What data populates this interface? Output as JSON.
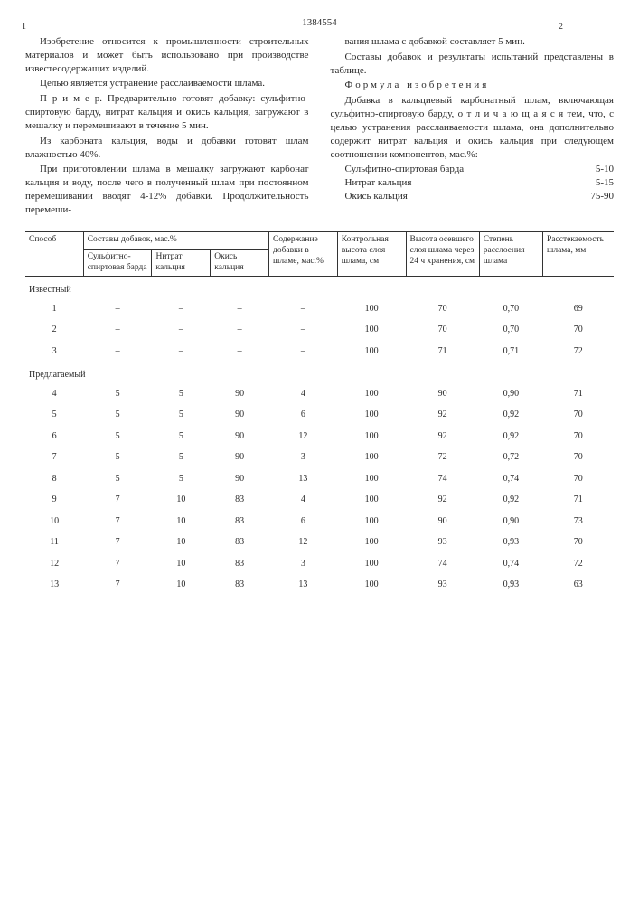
{
  "docnum": "1384554",
  "left": {
    "pagenum": "1",
    "p1": "Изобретение относится к промышленности строительных материалов и может быть использовано при производстве известесодержащих изделий.",
    "p2": "Целью является устранение расслаиваемости шлама.",
    "p3": "П р и м е р. Предварительно готовят добавку: сульфитно-спиртовую барду, нитрат кальция и окись кальция, загружают  в мешалку и перемешивают в течение 5 мин.",
    "p4": "Из карбоната кальция, воды  и добавки готовят шлам влажностью 40%.",
    "p5": "При приготовлении шлама в мешалку загружают карбонат кальция и воду, после чего в полученный шлам при постоянном перемешивании вводят 4-12% добавки. Продолжительность перемеши-"
  },
  "right": {
    "pagenum": "2",
    "p1": "вания шлама с добавкой составляет 5 мин.",
    "p2": "Составы добавок и результаты испытаний представлены в таблице.",
    "formula_head": "Формула изобретения",
    "p3": "Добавка в кальциевый карбонатный шлам, включающая сульфитно-спиртовую барду,  о т л и ч а ю щ а я с я  тем, что, с целью устранения расслаиваемости шлама, она дополнительно содержит нитрат кальция и окись кальция при следующем соотношении компонентов, мас.%:",
    "c1l": "Сульфитно-спиртовая барда",
    "c1r": "5-10",
    "c2l": "Нитрат кальция",
    "c2r": "5-15",
    "c3l": "Окись кальция",
    "c3r": "75-90"
  },
  "headers": {
    "h1": "Способ",
    "h2": "Составы добавок, мас.%",
    "h2a": "Сульфитно-спиртовая барда",
    "h2b": "Нитрат кальция",
    "h2c": "Окись кальция",
    "h3": "Содержание добавки в шламе, мас.%",
    "h4": "Контрольная высота слоя шлама, см",
    "h5": "Высота осевшего слоя шлама через 24 ч хранения, см",
    "h6": "Степень расслоения шлама",
    "h7": "Расстекаемость шлама, мм"
  },
  "sections": {
    "s1": "Известный",
    "s2": "Предлагаемый"
  },
  "rows": [
    [
      "1",
      "–",
      "–",
      "–",
      "–",
      "100",
      "70",
      "0,70",
      "69"
    ],
    [
      "2",
      "–",
      "–",
      "–",
      "–",
      "100",
      "70",
      "0,70",
      "70"
    ],
    [
      "3",
      "–",
      "–",
      "–",
      "–",
      "100",
      "71",
      "0,71",
      "72"
    ]
  ],
  "rows2": [
    [
      "4",
      "5",
      "5",
      "90",
      "4",
      "100",
      "90",
      "0,90",
      "71"
    ],
    [
      "5",
      "5",
      "5",
      "90",
      "6",
      "100",
      "92",
      "0,92",
      "70"
    ],
    [
      "6",
      "5",
      "5",
      "90",
      "12",
      "100",
      "92",
      "0,92",
      "70"
    ],
    [
      "7",
      "5",
      "5",
      "90",
      "3",
      "100",
      "72",
      "0,72",
      "70"
    ],
    [
      "8",
      "5",
      "5",
      "90",
      "13",
      "100",
      "74",
      "0,74",
      "70"
    ],
    [
      "9",
      "7",
      "10",
      "83",
      "4",
      "100",
      "92",
      "0,92",
      "71"
    ],
    [
      "10",
      "7",
      "10",
      "83",
      "6",
      "100",
      "90",
      "0,90",
      "73"
    ],
    [
      "11",
      "7",
      "10",
      "83",
      "12",
      "100",
      "93",
      "0,93",
      "70"
    ],
    [
      "12",
      "7",
      "10",
      "83",
      "3",
      "100",
      "74",
      "0,74",
      "72"
    ],
    [
      "13",
      "7",
      "10",
      "83",
      "13",
      "100",
      "93",
      "0,93",
      "63"
    ]
  ]
}
